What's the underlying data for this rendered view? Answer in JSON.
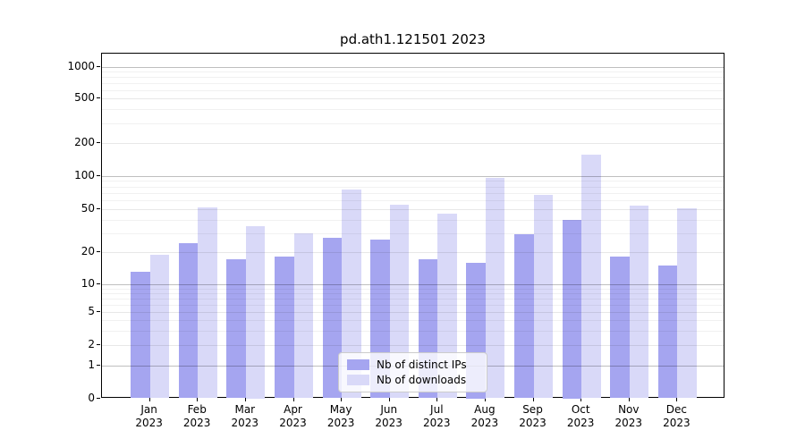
{
  "figure": {
    "title": "pd.ath1.121501 2023"
  },
  "chart_data": {
    "type": "bar",
    "title": "pd.ath1.121501 2023",
    "categories": [
      "Jan",
      "Feb",
      "Mar",
      "Apr",
      "May",
      "Jun",
      "Jul",
      "Aug",
      "Sep",
      "Oct",
      "Nov",
      "Dec"
    ],
    "category_year": "2023",
    "series": [
      {
        "name": "Nb of distinct IPs",
        "color": "#a5a5f0",
        "values": [
          13,
          24,
          17,
          18,
          27,
          26,
          17,
          16,
          29,
          40,
          18,
          15
        ]
      },
      {
        "name": "Nb of downloads",
        "color": "#d9d9f8",
        "values": [
          19,
          52,
          35,
          30,
          75,
          55,
          45,
          95,
          67,
          155,
          54,
          51
        ]
      }
    ],
    "xlabel": "",
    "ylabel": "",
    "yscale": "asinh-log",
    "ytick_labels": [
      "1000",
      "500",
      "200",
      "100",
      "50",
      "20",
      "10",
      "5",
      "2",
      "1",
      "0"
    ],
    "ytick_values": [
      1000,
      500,
      200,
      100,
      50,
      20,
      10,
      5,
      2,
      1,
      0
    ],
    "ylim": [
      0,
      1300
    ],
    "grid": true,
    "grid_minor_values": [
      3,
      4,
      6,
      7,
      8,
      9,
      30,
      40,
      60,
      70,
      80,
      90,
      300,
      400,
      600,
      700,
      800,
      900
    ],
    "legend_position": "lower-center-inside"
  },
  "legend": {
    "items": [
      {
        "label": "Nb of distinct IPs",
        "color": "#a5a5f0"
      },
      {
        "label": "Nb of downloads",
        "color": "#d9d9f8"
      }
    ]
  },
  "colors": {
    "ips_bar": "#a5a5f0",
    "downloads_bar": "#d9d9f8",
    "spine": "#000000",
    "grid_major": "rgba(0,0,0,0.25)",
    "grid_mid": "rgba(0,0,0,0.09)",
    "grid_minor": "rgba(0,0,0,0.055)",
    "legend_border": "#cccccc"
  }
}
